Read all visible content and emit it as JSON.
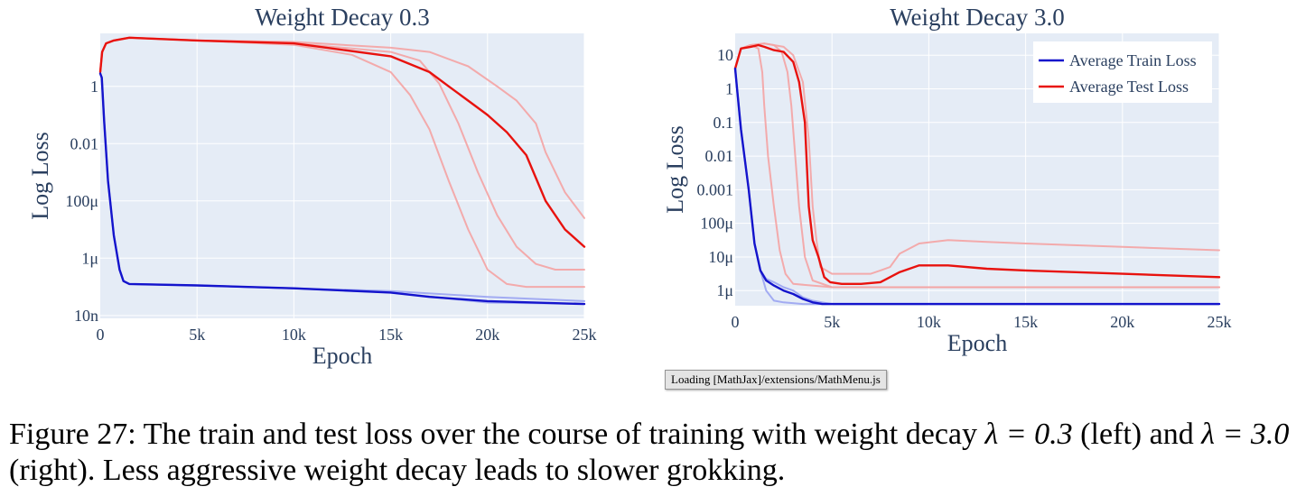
{
  "chart_data": [
    {
      "type": "line",
      "title": "Weight Decay 0.3",
      "xlabel": "Epoch",
      "ylabel": "Log Loss",
      "log_y": true,
      "xlim": [
        0,
        25000
      ],
      "ylim_log10": [
        -8.1,
        1.85
      ],
      "x_ticks": [
        0,
        5000,
        10000,
        15000,
        20000,
        25000
      ],
      "x_tick_labels": [
        "0",
        "5k",
        "10k",
        "15k",
        "20k",
        "25k"
      ],
      "y_ticks_log10": [
        0,
        -2,
        -4,
        -6,
        -8
      ],
      "y_tick_labels": [
        "1",
        "0.01",
        "100μ",
        "1μ",
        "10n"
      ],
      "grid": true,
      "series": [
        {
          "role": "train-run",
          "color": "#9aa4f2",
          "x": [
            0,
            80,
            200,
            400,
            700,
            1000,
            1200,
            1500,
            5000,
            10000,
            15000,
            20000,
            25000
          ],
          "y_log10": [
            0.45,
            0.3,
            -1.2,
            -3.3,
            -5.2,
            -6.4,
            -6.8,
            -6.9,
            -6.95,
            -7.05,
            -7.15,
            -7.35,
            -7.5
          ]
        },
        {
          "role": "train-run",
          "color": "#9aa4f2",
          "x": [
            0,
            80,
            200,
            400,
            700,
            1000,
            1200,
            1500,
            5000,
            10000,
            15000,
            20000,
            25000
          ],
          "y_log10": [
            0.45,
            0.3,
            -1.2,
            -3.3,
            -5.2,
            -6.4,
            -6.8,
            -6.9,
            -6.95,
            -7.05,
            -7.2,
            -7.55,
            -7.6
          ]
        },
        {
          "role": "test-run",
          "color": "#f4a3a3",
          "x": [
            0,
            100,
            300,
            700,
            1500,
            5000,
            10000,
            13000,
            15000,
            16000,
            17000,
            18000,
            19000,
            20000,
            21000,
            22000,
            25000
          ],
          "y_log10": [
            0.5,
            1.2,
            1.5,
            1.6,
            1.7,
            1.6,
            1.45,
            1.1,
            0.5,
            -0.3,
            -1.5,
            -3.3,
            -5.0,
            -6.4,
            -6.9,
            -7.0,
            -7.0
          ]
        },
        {
          "role": "test-run",
          "color": "#f4a3a3",
          "x": [
            0,
            100,
            300,
            700,
            1500,
            5000,
            10000,
            15000,
            16500,
            17500,
            18500,
            19500,
            20500,
            21500,
            22500,
            23500,
            25000
          ],
          "y_log10": [
            0.5,
            1.2,
            1.5,
            1.6,
            1.7,
            1.6,
            1.5,
            1.2,
            0.9,
            0.1,
            -1.3,
            -3.0,
            -4.5,
            -5.6,
            -6.2,
            -6.4,
            -6.4
          ]
        },
        {
          "role": "test-run",
          "color": "#f4a3a3",
          "x": [
            0,
            100,
            300,
            700,
            1500,
            5000,
            10000,
            15000,
            17000,
            19000,
            20500,
            21500,
            22500,
            23000,
            24000,
            25000
          ],
          "y_log10": [
            0.5,
            1.2,
            1.5,
            1.6,
            1.7,
            1.6,
            1.55,
            1.35,
            1.2,
            0.7,
            0.0,
            -0.5,
            -1.3,
            -2.3,
            -3.7,
            -4.6
          ]
        },
        {
          "role": "test-average",
          "color": "#e8120e",
          "x": [
            0,
            100,
            300,
            700,
            1500,
            5000,
            10000,
            15000,
            17000,
            18000,
            19000,
            20000,
            21000,
            22000,
            22500,
            23000,
            24000,
            25000
          ],
          "y_log10": [
            0.5,
            1.2,
            1.5,
            1.6,
            1.7,
            1.6,
            1.5,
            1.05,
            0.5,
            0.0,
            -0.5,
            -1.0,
            -1.6,
            -2.4,
            -3.2,
            -4.0,
            -5.0,
            -5.6
          ]
        },
        {
          "role": "train-average",
          "color": "#1414cc",
          "x": [
            0,
            80,
            200,
            400,
            700,
            1000,
            1200,
            1500,
            5000,
            10000,
            15000,
            17000,
            20000,
            25000
          ],
          "y_log10": [
            0.45,
            0.3,
            -1.2,
            -3.3,
            -5.2,
            -6.4,
            -6.8,
            -6.9,
            -6.95,
            -7.05,
            -7.2,
            -7.35,
            -7.5,
            -7.6
          ]
        }
      ]
    },
    {
      "type": "line",
      "title": "Weight Decay 3.0",
      "xlabel": "Epoch",
      "ylabel": "Log Loss",
      "log_y": true,
      "xlim": [
        0,
        25000
      ],
      "ylim_log10": [
        -6.45,
        1.65
      ],
      "x_ticks": [
        0,
        5000,
        10000,
        15000,
        20000,
        25000
      ],
      "x_tick_labels": [
        "0",
        "5k",
        "10k",
        "15k",
        "20k",
        "25k"
      ],
      "y_ticks_log10": [
        1,
        0,
        -1,
        -2,
        -3,
        -4,
        -5,
        -6
      ],
      "y_tick_labels": [
        "10",
        "1",
        "0.1",
        "0.01",
        "0.001",
        "100μ",
        "10μ",
        "1μ"
      ],
      "grid": true,
      "legend": {
        "position": "top-right",
        "entries": [
          {
            "label": "Average Train Loss",
            "color": "#1414cc"
          },
          {
            "label": "Average Test Loss",
            "color": "#e8120e"
          }
        ]
      },
      "series": [
        {
          "role": "train-run",
          "color": "#9aa4f2",
          "x": [
            0,
            100,
            300,
            700,
            1000,
            1300,
            1600,
            2000,
            2500,
            3500,
            4500,
            5000,
            25000
          ],
          "y_log10": [
            0.6,
            0.0,
            -1.2,
            -3.0,
            -4.6,
            -5.4,
            -6.0,
            -6.3,
            -6.35,
            -6.4,
            -6.4,
            -6.4,
            -6.4
          ]
        },
        {
          "role": "train-run",
          "color": "#9aa4f2",
          "x": [
            0,
            100,
            300,
            700,
            1000,
            1300,
            1600,
            2000,
            2500,
            3000,
            3500,
            4000,
            4500,
            5000,
            25000
          ],
          "y_log10": [
            0.6,
            0.0,
            -1.2,
            -3.0,
            -4.6,
            -5.4,
            -5.65,
            -5.75,
            -5.9,
            -6.0,
            -6.2,
            -6.3,
            -6.35,
            -6.4,
            -6.4
          ]
        },
        {
          "role": "test-run",
          "color": "#f4a3a3",
          "x": [
            0,
            300,
            800,
            1200,
            1400,
            1500,
            1700,
            2000,
            2300,
            2600,
            3000,
            5000,
            25000
          ],
          "y_log10": [
            0.6,
            1.2,
            1.3,
            1.2,
            0.5,
            -0.5,
            -2.0,
            -3.5,
            -4.8,
            -5.5,
            -5.8,
            -5.9,
            -5.9
          ]
        },
        {
          "role": "test-run",
          "color": "#f4a3a3",
          "x": [
            0,
            300,
            800,
            1500,
            2000,
            2400,
            2700,
            2900,
            3100,
            3300,
            3600,
            4000,
            5000,
            25000
          ],
          "y_log10": [
            0.6,
            1.2,
            1.3,
            1.35,
            1.3,
            1.1,
            0.5,
            -0.5,
            -2.0,
            -3.5,
            -5.0,
            -5.7,
            -5.9,
            -5.9
          ]
        },
        {
          "role": "test-run",
          "color": "#f4a3a3",
          "x": [
            0,
            300,
            800,
            1500,
            2500,
            3000,
            3500,
            3800,
            4000,
            4200,
            4400,
            4700,
            5000,
            6000,
            7000,
            7500,
            8000,
            8500,
            9500,
            11000,
            13000,
            15000,
            20000,
            25000
          ],
          "y_log10": [
            0.6,
            1.2,
            1.3,
            1.35,
            1.25,
            1.0,
            0.2,
            -1.5,
            -3.5,
            -4.5,
            -5.3,
            -5.4,
            -5.5,
            -5.5,
            -5.5,
            -5.4,
            -5.3,
            -4.9,
            -4.6,
            -4.5,
            -4.55,
            -4.6,
            -4.7,
            -4.8
          ]
        },
        {
          "role": "test-average",
          "color": "#e8120e",
          "x": [
            0,
            300,
            800,
            1200,
            1500,
            2000,
            2500,
            3000,
            3300,
            3600,
            3800,
            4000,
            4300,
            4600,
            4900,
            5500,
            6500,
            7500,
            8500,
            9500,
            11000,
            13000,
            15000,
            20000,
            25000
          ],
          "y_log10": [
            0.6,
            1.2,
            1.25,
            1.3,
            1.25,
            1.15,
            1.1,
            0.8,
            0.2,
            -1.0,
            -3.5,
            -4.5,
            -5.0,
            -5.6,
            -5.75,
            -5.8,
            -5.8,
            -5.75,
            -5.45,
            -5.25,
            -5.25,
            -5.35,
            -5.4,
            -5.5,
            -5.6
          ]
        },
        {
          "role": "train-average",
          "color": "#1414cc",
          "x": [
            0,
            100,
            300,
            700,
            1000,
            1300,
            1600,
            2000,
            2500,
            3000,
            3500,
            4000,
            4500,
            5000,
            25000
          ],
          "y_log10": [
            0.6,
            0.0,
            -1.2,
            -3.0,
            -4.6,
            -5.4,
            -5.7,
            -5.85,
            -6.0,
            -6.1,
            -6.25,
            -6.35,
            -6.4,
            -6.4,
            -6.4
          ]
        }
      ]
    }
  ],
  "status_bar": {
    "text": "Loading [MathJax]/extensions/MathMenu.js"
  },
  "caption": {
    "lead": "Figure 27: The train and test loss over the course of training with weight decay ",
    "math1": "λ = 0.3",
    "mid": " (left) and ",
    "math2": "λ = 3.0",
    "tail": " (right). Less aggressive weight decay leads to slower grokking."
  }
}
